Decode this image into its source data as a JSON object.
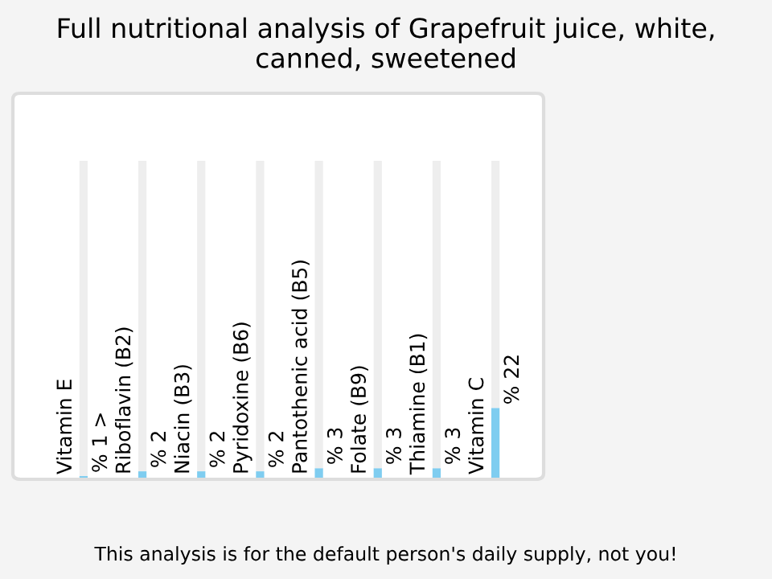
{
  "chart_data": {
    "type": "bar",
    "title": "Full nutritional analysis of Grapefruit juice, white, canned, sweetened",
    "categories": [
      "Vitamin E",
      "Riboflavin (B2)",
      "Niacin (B3)",
      "Pyridoxine (B6)",
      "Pantothenic acid (B5)",
      "Folate (B9)",
      "Thiamine (B1)",
      "Vitamin C"
    ],
    "stacked": true,
    "series": [
      {
        "color": "#7fcdf0",
        "values": [
          0.5,
          2,
          2,
          2,
          3,
          3,
          3,
          22
        ],
        "value_labels": [
          "% 1 >",
          "% 2",
          "% 2",
          "% 2",
          "% 3",
          "% 3",
          "% 3",
          "% 22"
        ]
      },
      {
        "color": "#eeeeee",
        "values": [
          99.5,
          98,
          98,
          98,
          97,
          97,
          97,
          78
        ]
      }
    ],
    "tick_labels": false,
    "annotations": [
      "This analysis is for the default person's daily supply, not you!"
    ]
  }
}
